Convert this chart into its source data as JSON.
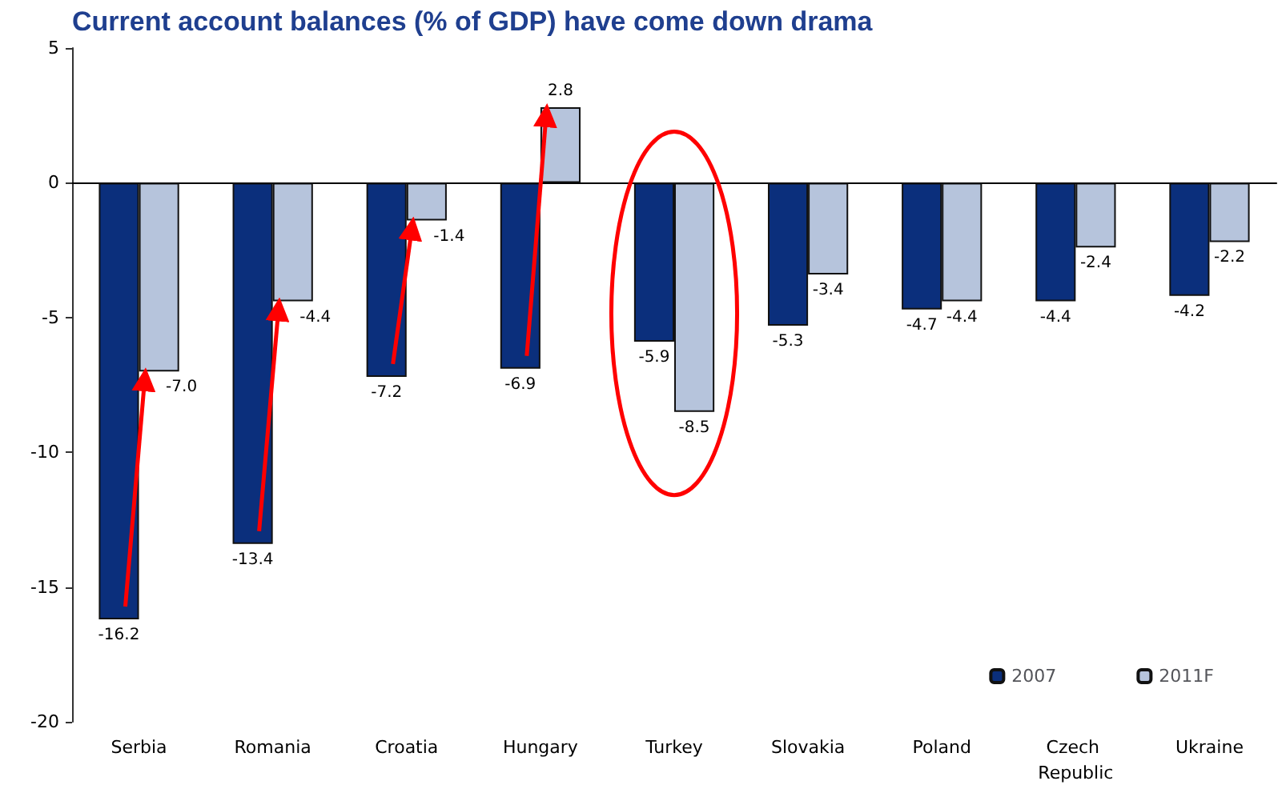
{
  "chart_data": {
    "type": "bar",
    "title": "Current account balances (% of GDP) have come down drama",
    "categories": [
      "Serbia",
      "Romania",
      "Croatia",
      "Hungary",
      "Turkey",
      "Slovakia",
      "Poland",
      "Czech Republic",
      "Ukraine"
    ],
    "series": [
      {
        "name": "2007",
        "color": "#0b2f7c",
        "values": [
          -16.2,
          -13.4,
          -7.2,
          -6.9,
          -5.9,
          -5.3,
          -4.7,
          -4.4,
          -4.2
        ],
        "value_labels": [
          "-16.2",
          "-13.4",
          "-7.2",
          "-6.9",
          "-5.9",
          "-5.3",
          "-4.7",
          "-4.4",
          "-4.2"
        ]
      },
      {
        "name": "2011F",
        "color": "#b6c4dc",
        "values": [
          -7.0,
          -4.4,
          -1.4,
          2.8,
          -8.5,
          -3.4,
          -4.4,
          -2.4,
          -2.2
        ],
        "value_labels": [
          "-7.0",
          "-4.4",
          "-1.4",
          "2.8",
          "-8.5",
          "-3.4",
          "-4.4",
          "-2.4",
          "-2.2"
        ]
      }
    ],
    "ylim": [
      -20,
      5
    ],
    "yticks": [
      -20,
      -15,
      -10,
      -5,
      0,
      5
    ],
    "legend": "bottom right"
  }
}
